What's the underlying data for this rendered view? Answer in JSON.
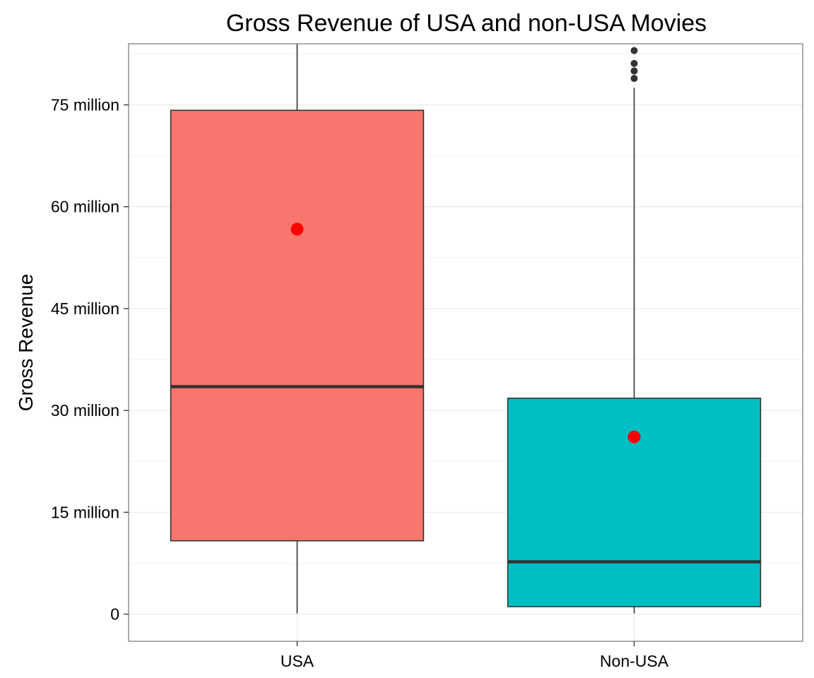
{
  "chart_data": {
    "type": "box",
    "title": "Gross Revenue of USA and non-USA Movies",
    "xlabel": "",
    "ylabel": "Gross Revenue",
    "ylim": [
      -4,
      84
    ],
    "y_ticks": [
      0,
      15,
      30,
      45,
      60,
      75
    ],
    "y_tick_labels": [
      "0",
      "15 million",
      "30 million",
      "45 million",
      "60 million",
      "75 million"
    ],
    "grid": true,
    "categories": [
      "USA",
      "Non-USA"
    ],
    "series": [
      {
        "category": "USA",
        "whisker_low": 0.1,
        "q1": 10.8,
        "median": 33.5,
        "q3": 74.2,
        "whisker_high": 84,
        "mean": 56.7,
        "outliers": [],
        "fill": "#F8766D"
      },
      {
        "category": "Non-USA",
        "whisker_low": 0.1,
        "q1": 1.1,
        "median": 7.7,
        "q3": 31.8,
        "whisker_high": 77.5,
        "mean": 26.1,
        "outliers": [
          78.9,
          80.0,
          81.1,
          83.0
        ],
        "fill": "#00BFC4"
      }
    ],
    "mean_marker_color": "#FF0000",
    "outlier_color": "#333333"
  }
}
